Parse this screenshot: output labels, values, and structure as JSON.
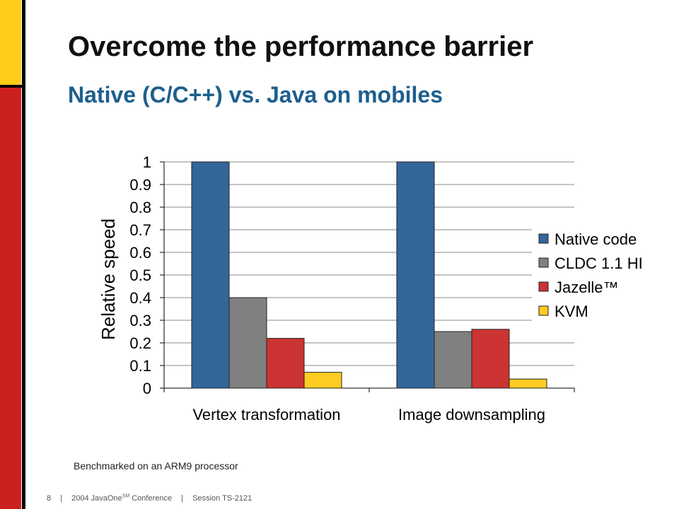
{
  "slide": {
    "title": "Overcome the performance barrier",
    "subtitle": "Native (C/C++) vs. Java on mobiles",
    "note": "Benchmarked on an ARM9 processor"
  },
  "footer": {
    "page_number": "8",
    "separator": "|",
    "event_prefix": "2004 JavaOne",
    "event_superscript": "SM",
    "event_suffix": " Conference",
    "session": "Session TS-2121"
  },
  "colors": {
    "accent_yellow": "#ffcc1a",
    "accent_red": "#cc1f1f",
    "subtitle_blue": "#1d5f8f"
  },
  "chart_data": {
    "type": "bar",
    "categories": [
      "Vertex transformation",
      "Image downsampling"
    ],
    "series": [
      {
        "name": "Native code",
        "color": "#336699",
        "values": [
          1.0,
          1.0
        ]
      },
      {
        "name": "CLDC 1.1 HI",
        "color": "#808080",
        "values": [
          0.4,
          0.25
        ]
      },
      {
        "name": "Jazelle™",
        "color": "#cc3333",
        "values": [
          0.22,
          0.26
        ]
      },
      {
        "name": "KVM",
        "color": "#ffcc22",
        "values": [
          0.07,
          0.04
        ]
      }
    ],
    "ylabel": "Relative speed",
    "xlabel": "",
    "ylim": [
      0,
      1
    ],
    "yticks": [
      "0",
      "0.1",
      "0.2",
      "0.3",
      "0.4",
      "0.5",
      "0.6",
      "0.7",
      "0.8",
      "0.9",
      "1"
    ],
    "grid": true,
    "legend": "right"
  }
}
